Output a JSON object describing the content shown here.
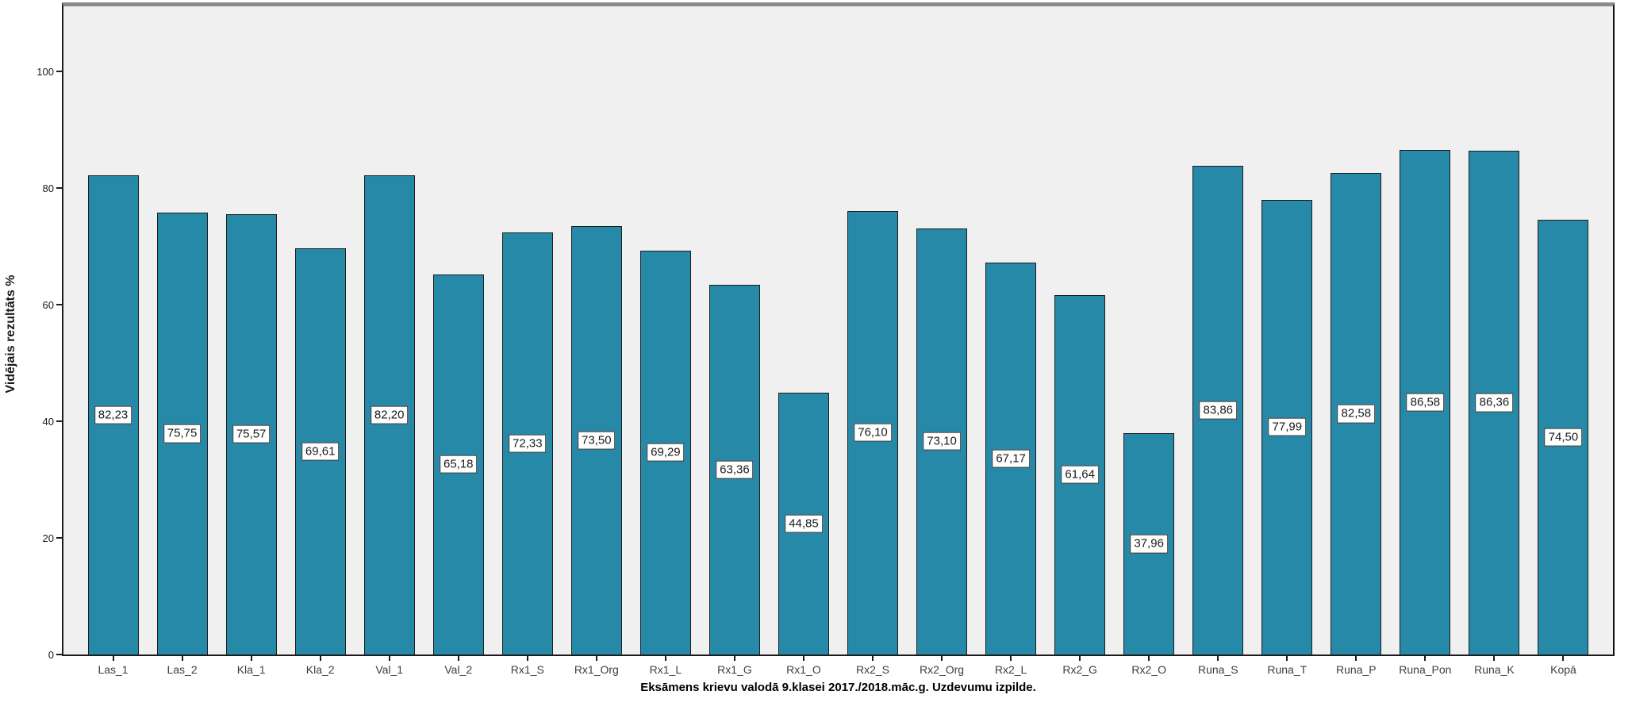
{
  "chart_data": {
    "type": "bar",
    "title": "Eksāmens krievu valodā 9.klasei 2017./2018.māc.g. Uzdevumu izpilde.",
    "ylabel": "Vidējais rezultāts %",
    "xlabel": "",
    "categories": [
      "Las_1",
      "Las_2",
      "Kla_1",
      "Kla_2",
      "Val_1",
      "Val_2",
      "Rx1_S",
      "Rx1_Org",
      "Rx1_L",
      "Rx1_G",
      "Rx1_O",
      "Rx2_S",
      "Rx2_Org",
      "Rx2_L",
      "Rx2_G",
      "Rx2_O",
      "Runa_S",
      "Runa_T",
      "Runa_P",
      "Runa_Pon",
      "Runa_K",
      "Kopā"
    ],
    "values": [
      82.23,
      75.75,
      75.57,
      69.61,
      82.2,
      65.18,
      72.33,
      73.5,
      69.29,
      63.36,
      44.85,
      76.1,
      73.1,
      67.17,
      61.64,
      37.96,
      83.86,
      77.99,
      82.58,
      86.58,
      86.36,
      74.5
    ],
    "value_labels": [
      "82,23",
      "75,75",
      "75,57",
      "69,61",
      "82,20",
      "65,18",
      "72,33",
      "73,50",
      "69,29",
      "63,36",
      "44,85",
      "76,10",
      "73,10",
      "67,17",
      "61,64",
      "37,96",
      "83,86",
      "77,99",
      "82,58",
      "86,58",
      "86,36",
      "74,50"
    ],
    "yticks": [
      0,
      20,
      40,
      60,
      80,
      100
    ],
    "ylim": [
      0,
      111
    ],
    "grid": false,
    "legend": "none",
    "bar_color": "#2789a8",
    "bar_border_color": "#1c1c1c",
    "plot_background": "#f0f0f0",
    "frame_top_color": "#8c8c8c",
    "axis_color": "#1c1c1c",
    "value_label_box": {
      "background": "#ffffff",
      "border": "#2e2e2e",
      "position": "middle-of-bar"
    }
  }
}
